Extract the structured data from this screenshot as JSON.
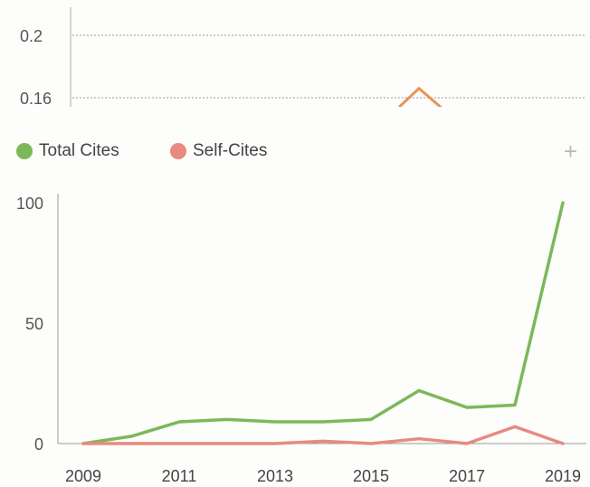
{
  "chart_data": [
    {
      "type": "line",
      "title": "",
      "visible_ticks": [
        0.2,
        0.16
      ],
      "tick_labels": [
        "0.2",
        "0.16"
      ],
      "peak": {
        "x": 2016,
        "y": 0.166
      },
      "colors": {
        "line": "#e8935a",
        "grid": "#999999"
      }
    },
    {
      "type": "line",
      "title": "",
      "xlabel": "",
      "ylabel": "",
      "x": [
        2009,
        2010,
        2011,
        2012,
        2013,
        2014,
        2015,
        2016,
        2017,
        2018,
        2019
      ],
      "x_tick_labels": [
        "2009",
        "2011",
        "2013",
        "2015",
        "2017",
        "2019"
      ],
      "x_ticks": [
        2009,
        2011,
        2013,
        2015,
        2017,
        2019
      ],
      "y_tick_labels": [
        "100",
        "50",
        "0"
      ],
      "y_ticks": [
        100,
        50,
        0
      ],
      "ylim": [
        0,
        100
      ],
      "grid": false,
      "legend_position": "top-left",
      "series": [
        {
          "name": "Total Cites",
          "color": "#7cb85a",
          "values": [
            0,
            3,
            9,
            10,
            9,
            9,
            10,
            22,
            15,
            16,
            100
          ]
        },
        {
          "name": "Self-Cites",
          "color": "#e88a80",
          "values": [
            0,
            0,
            0,
            0,
            0,
            1,
            0,
            2,
            0,
            7,
            0
          ]
        }
      ]
    }
  ],
  "legend": {
    "total_label": "Total Cites",
    "self_label": "Self-Cites",
    "add_icon": "+"
  }
}
